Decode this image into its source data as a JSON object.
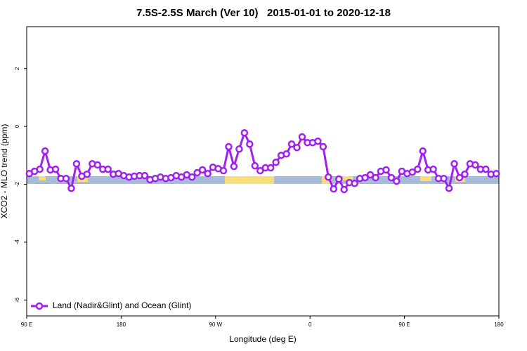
{
  "chart_data": {
    "type": "line",
    "title": "7.5S-2.5S March (Ver 10)   2015-01-01 to 2020-12-18",
    "x_label": "Longitude (deg E)",
    "y_label": "XCO2 - MLO trend (ppm)",
    "legend": "bottom left",
    "x": [
      92.5,
      97.5,
      102.5,
      107.5,
      112.5,
      117.5,
      122.5,
      127.5,
      132.5,
      137.5,
      142.5,
      147.5,
      152.5,
      157.5,
      162.5,
      167.5,
      172.5,
      177.5,
      182.5,
      187.5,
      192.5,
      197.5,
      202.5,
      207.5,
      212.5,
      217.5,
      222.5,
      227.5,
      232.5,
      237.5,
      242.5,
      247.5,
      252.5,
      257.5,
      262.5,
      267.5,
      272.5,
      277.5,
      282.5,
      287.5,
      292.5,
      297.5,
      302.5,
      307.5,
      312.5,
      317.5,
      322.5,
      327.5,
      332.5,
      337.5,
      342.5,
      347.5,
      352.5,
      357.5,
      362.5,
      367.5,
      372.5,
      377.5,
      382.5,
      387.5,
      392.5,
      397.5,
      402.5,
      407.5,
      412.5,
      417.5,
      422.5,
      427.5,
      432.5,
      437.5,
      442.5,
      447.5,
      452.5,
      457.5,
      462.5,
      467.5,
      472.5,
      477.5,
      482.5,
      487.5,
      492.5,
      497.5,
      502.5,
      507.5,
      512.5,
      517.5,
      522.5,
      527.5,
      532.5,
      537.5
    ],
    "series": [
      {
        "name": "Land (Nadir&Glint) and Ocean (Glint)",
        "color": "#a020f0",
        "values": [
          -1.63,
          -1.55,
          -1.48,
          -0.85,
          -1.5,
          -1.48,
          -1.8,
          -1.8,
          -2.14,
          -1.29,
          -1.72,
          -1.65,
          -1.29,
          -1.33,
          -1.48,
          -1.48,
          -1.65,
          -1.63,
          -1.7,
          -1.75,
          -1.72,
          -1.7,
          -1.7,
          -1.84,
          -1.8,
          -1.75,
          -1.8,
          -1.77,
          -1.7,
          -1.75,
          -1.67,
          -1.75,
          -1.6,
          -1.5,
          -1.63,
          -1.41,
          -1.46,
          -1.53,
          -0.7,
          -1.38,
          -0.78,
          -0.22,
          -0.61,
          -1.36,
          -1.53,
          -1.43,
          -1.43,
          -1.24,
          -1.0,
          -0.95,
          -0.61,
          -0.73,
          -0.36,
          -0.56,
          -0.56,
          -0.51,
          -0.7,
          -1.75,
          -2.16,
          -1.82,
          -2.18,
          -1.94,
          -1.97,
          -1.8,
          -1.77,
          -1.67,
          -1.77,
          -1.55,
          -1.5,
          -1.77,
          -1.89,
          -1.55,
          -1.63,
          -1.58,
          -1.48,
          -0.85,
          -1.5,
          -1.48,
          -1.8,
          -1.8,
          -2.14,
          -1.29,
          -1.77,
          -1.65,
          -1.29,
          -1.33,
          -1.48,
          -1.48,
          -1.65,
          -1.63
        ]
      }
    ],
    "xlim": [
      90,
      540
    ],
    "xticks": [
      {
        "value": 90,
        "label": "90 E"
      },
      180,
      {
        "value": 270,
        "label": "90 W"
      },
      {
        "value": 360,
        "label": "0"
      },
      {
        "value": 450,
        "label": "90 E"
      },
      {
        "value": 540,
        "label": "180"
      }
    ],
    "ylim": [
      -6.55,
      3.45
    ],
    "yticks": [
      -6,
      -4,
      -2,
      0,
      2
    ]
  }
}
